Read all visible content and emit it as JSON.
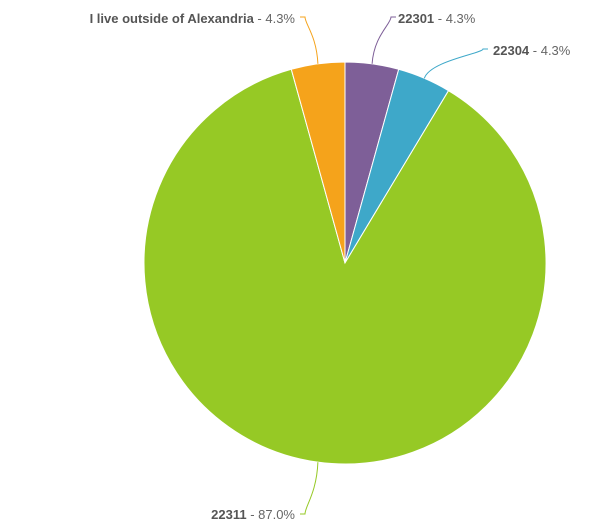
{
  "chart_data": {
    "type": "pie",
    "title": "",
    "start_angle_deg": 0,
    "direction": "clockwise",
    "legend": "none",
    "slices": [
      {
        "name": "22301",
        "value": 4.3,
        "display": "4.3%",
        "color": "#7e5f98"
      },
      {
        "name": "22304",
        "value": 4.3,
        "display": "4.3%",
        "color": "#3ea8c9"
      },
      {
        "name": "22311",
        "value": 87.0,
        "display": "87.0%",
        "color": "#96c925"
      },
      {
        "name": "I live outside of Alexandria",
        "value": 4.3,
        "display": "4.3%",
        "color": "#f5a31b"
      }
    ]
  }
}
